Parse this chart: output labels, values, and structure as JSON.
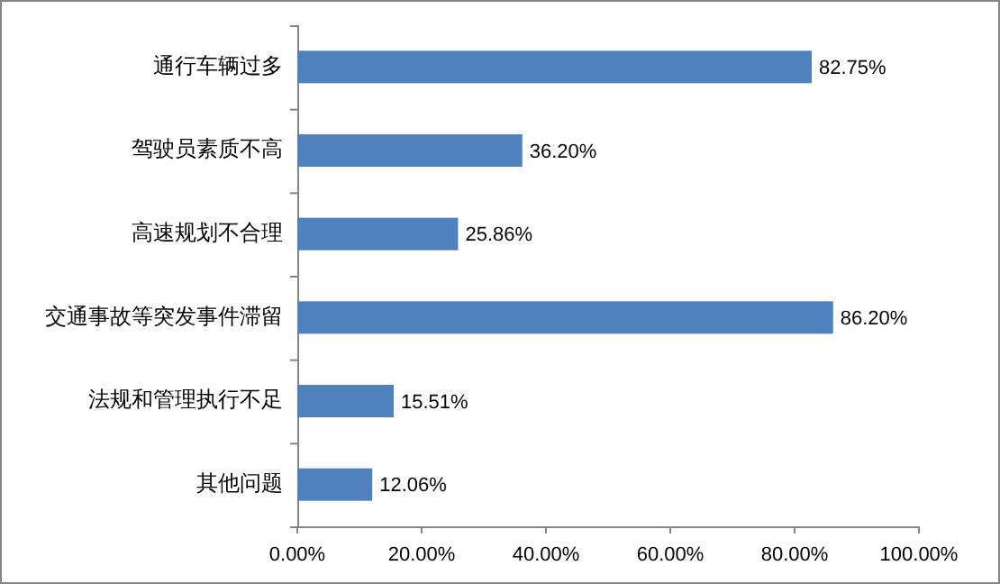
{
  "chart_data": {
    "type": "bar",
    "orientation": "horizontal",
    "categories": [
      "通行车辆过多",
      "驾驶员素质不高",
      "高速规划不合理",
      "交通事故等突发事件滞留",
      "法规和管理执行不足",
      "其他问题"
    ],
    "values": [
      82.75,
      36.2,
      25.86,
      86.2,
      15.51,
      12.06
    ],
    "value_labels": [
      "82.75%",
      "36.20%",
      "25.86%",
      "86.20%",
      "15.51%",
      "12.06%"
    ],
    "color": "#4f81bd",
    "xlim": [
      0,
      100
    ],
    "xticks": [
      {
        "value": 0,
        "label": "0.00%"
      },
      {
        "value": 20,
        "label": "20.00%"
      },
      {
        "value": 40,
        "label": "40.00%"
      },
      {
        "value": 60,
        "label": "60.00%"
      },
      {
        "value": 80,
        "label": "80.00%"
      },
      {
        "value": 100,
        "label": "100.00%"
      }
    ],
    "grid": false
  }
}
